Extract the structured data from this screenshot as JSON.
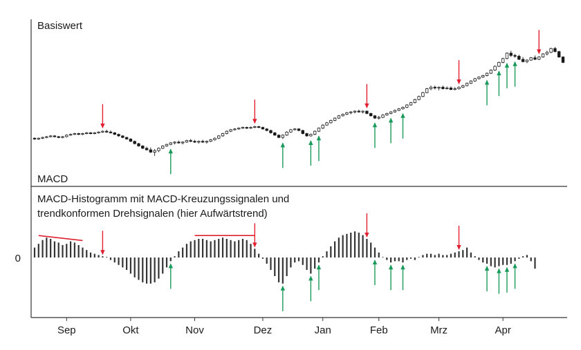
{
  "chart_data": [
    {
      "type": "candlestick",
      "title": "Basiswert",
      "ylabel": "",
      "grid": false,
      "series": [
        {
          "ohlc": [
            [
              15.8,
              15.9,
              15.6,
              15.7
            ],
            [
              15.7,
              15.9,
              15.6,
              15.8
            ],
            [
              15.8,
              16.0,
              15.7,
              15.9
            ],
            [
              15.9,
              16.1,
              15.8,
              16.0
            ],
            [
              16.0,
              16.2,
              15.9,
              16.1
            ],
            [
              16.1,
              16.2,
              15.9,
              16.0
            ],
            [
              16.0,
              16.1,
              15.8,
              15.9
            ],
            [
              15.9,
              16.1,
              15.8,
              16.0
            ],
            [
              16.0,
              16.3,
              15.9,
              16.2
            ],
            [
              16.2,
              16.4,
              16.1,
              16.3
            ],
            [
              16.3,
              16.5,
              16.2,
              16.4
            ],
            [
              16.4,
              16.5,
              16.2,
              16.3
            ],
            [
              16.3,
              16.5,
              16.2,
              16.4
            ],
            [
              16.4,
              16.6,
              16.3,
              16.5
            ],
            [
              16.5,
              16.6,
              16.3,
              16.4
            ],
            [
              16.4,
              16.6,
              16.3,
              16.5
            ],
            [
              16.5,
              16.7,
              16.4,
              16.6
            ],
            [
              16.6,
              16.8,
              16.5,
              16.7
            ],
            [
              16.7,
              16.9,
              16.5,
              16.6
            ],
            [
              16.6,
              16.8,
              16.4,
              16.5
            ],
            [
              16.5,
              16.6,
              16.2,
              16.3
            ],
            [
              16.3,
              16.4,
              16.0,
              16.1
            ],
            [
              16.1,
              16.2,
              15.8,
              15.9
            ],
            [
              15.9,
              16.0,
              15.6,
              15.7
            ],
            [
              15.7,
              15.8,
              15.3,
              15.4
            ],
            [
              15.4,
              15.5,
              15.0,
              15.1
            ],
            [
              15.1,
              15.2,
              14.7,
              14.8
            ],
            [
              14.8,
              14.9,
              14.4,
              14.5
            ],
            [
              14.5,
              14.7,
              14.2,
              14.3
            ],
            [
              14.3,
              14.6,
              13.9,
              14.0
            ],
            [
              14.0,
              14.4,
              13.5,
              14.2
            ],
            [
              14.2,
              14.6,
              14.0,
              14.5
            ],
            [
              14.5,
              14.9,
              14.4,
              14.8
            ],
            [
              14.8,
              15.1,
              14.7,
              15.0
            ],
            [
              15.0,
              15.3,
              14.9,
              15.2
            ],
            [
              15.2,
              15.4,
              15.0,
              15.3
            ],
            [
              15.3,
              15.5,
              15.1,
              15.2
            ],
            [
              15.2,
              15.4,
              15.0,
              15.3
            ],
            [
              15.3,
              15.6,
              15.2,
              15.5
            ],
            [
              15.5,
              15.7,
              15.3,
              15.4
            ],
            [
              15.4,
              15.6,
              15.2,
              15.3
            ],
            [
              15.3,
              15.5,
              15.1,
              15.4
            ],
            [
              15.4,
              15.6,
              15.2,
              15.3
            ],
            [
              15.3,
              15.5,
              15.1,
              15.4
            ],
            [
              15.4,
              15.7,
              15.3,
              15.6
            ],
            [
              15.6,
              15.9,
              15.5,
              15.8
            ],
            [
              15.8,
              16.2,
              15.7,
              16.1
            ],
            [
              16.1,
              16.5,
              16.0,
              16.4
            ],
            [
              16.4,
              16.8,
              16.3,
              16.7
            ],
            [
              16.7,
              17.0,
              16.6,
              16.9
            ],
            [
              16.9,
              17.1,
              16.8,
              17.0
            ],
            [
              17.0,
              17.2,
              16.9,
              17.1
            ],
            [
              17.1,
              17.3,
              17.0,
              17.2
            ],
            [
              17.2,
              17.3,
              17.0,
              17.1
            ],
            [
              17.1,
              17.3,
              17.0,
              17.2
            ],
            [
              17.2,
              17.4,
              17.1,
              17.3
            ],
            [
              17.3,
              17.4,
              17.1,
              17.2
            ],
            [
              17.2,
              17.3,
              16.9,
              17.0
            ],
            [
              17.0,
              17.1,
              16.7,
              16.8
            ],
            [
              16.8,
              16.9,
              16.4,
              16.5
            ],
            [
              16.5,
              16.6,
              16.1,
              16.2
            ],
            [
              16.2,
              16.3,
              15.8,
              15.9
            ],
            [
              15.9,
              16.3,
              15.7,
              16.2
            ],
            [
              16.2,
              16.7,
              16.1,
              16.6
            ],
            [
              16.6,
              17.0,
              16.5,
              16.9
            ],
            [
              16.9,
              17.1,
              16.8,
              17.0
            ],
            [
              17.0,
              17.1,
              16.7,
              16.8
            ],
            [
              16.8,
              16.9,
              16.3,
              16.4
            ],
            [
              16.4,
              16.5,
              16.0,
              16.1
            ],
            [
              16.1,
              16.4,
              16.0,
              16.3
            ],
            [
              16.3,
              16.8,
              16.2,
              16.7
            ],
            [
              16.7,
              17.2,
              16.6,
              17.1
            ],
            [
              17.1,
              17.6,
              17.0,
              17.5
            ],
            [
              17.5,
              17.9,
              17.4,
              17.8
            ],
            [
              17.8,
              18.2,
              17.7,
              18.1
            ],
            [
              18.1,
              18.5,
              18.0,
              18.4
            ],
            [
              18.4,
              18.8,
              18.3,
              18.7
            ],
            [
              18.7,
              19.0,
              18.6,
              18.9
            ],
            [
              18.9,
              19.2,
              18.8,
              19.1
            ],
            [
              19.1,
              19.3,
              18.9,
              19.2
            ],
            [
              19.2,
              19.4,
              19.0,
              19.3
            ],
            [
              19.3,
              19.5,
              19.1,
              19.2
            ],
            [
              19.2,
              19.4,
              19.0,
              19.3
            ],
            [
              19.3,
              19.4,
              18.9,
              19.0
            ],
            [
              19.0,
              19.1,
              18.6,
              18.7
            ],
            [
              18.7,
              18.8,
              18.3,
              18.4
            ],
            [
              18.4,
              18.7,
              18.2,
              18.5
            ],
            [
              18.5,
              18.9,
              18.4,
              18.8
            ],
            [
              18.8,
              19.1,
              18.7,
              19.0
            ],
            [
              19.0,
              19.3,
              18.9,
              19.2
            ],
            [
              19.2,
              19.5,
              19.1,
              19.4
            ],
            [
              19.4,
              19.7,
              19.3,
              19.6
            ],
            [
              19.6,
              19.9,
              19.5,
              19.8
            ],
            [
              19.8,
              20.2,
              19.7,
              20.1
            ],
            [
              20.1,
              20.5,
              20.0,
              20.4
            ],
            [
              20.4,
              20.9,
              20.3,
              20.8
            ],
            [
              20.8,
              21.3,
              20.7,
              21.2
            ],
            [
              21.2,
              21.8,
              21.1,
              21.7
            ],
            [
              21.7,
              22.3,
              21.6,
              22.2
            ],
            [
              22.2,
              22.6,
              22.0,
              22.4
            ],
            [
              22.4,
              22.6,
              22.1,
              22.3
            ],
            [
              22.3,
              22.5,
              22.0,
              22.4
            ],
            [
              22.4,
              22.6,
              22.1,
              22.2
            ],
            [
              22.2,
              22.5,
              22.1,
              22.3
            ],
            [
              22.3,
              22.5,
              22.0,
              22.1
            ],
            [
              22.1,
              22.4,
              22.0,
              22.2
            ],
            [
              22.2,
              22.5,
              22.1,
              22.4
            ],
            [
              22.4,
              22.7,
              22.3,
              22.6
            ],
            [
              22.6,
              23.0,
              22.5,
              22.9
            ],
            [
              22.9,
              23.3,
              22.8,
              23.2
            ],
            [
              23.2,
              23.6,
              23.1,
              23.5
            ],
            [
              23.5,
              23.8,
              23.4,
              23.7
            ],
            [
              23.7,
              24.0,
              23.6,
              23.9
            ],
            [
              23.9,
              24.3,
              23.8,
              24.2
            ],
            [
              24.2,
              24.7,
              24.1,
              24.6
            ],
            [
              24.6,
              25.2,
              24.5,
              25.1
            ],
            [
              25.1,
              25.7,
              25.0,
              25.6
            ],
            [
              25.6,
              26.2,
              25.5,
              26.1
            ],
            [
              26.1,
              26.9,
              26.0,
              26.8
            ],
            [
              26.8,
              27.1,
              26.3,
              26.5
            ],
            [
              26.5,
              26.7,
              26.2,
              26.4
            ],
            [
              26.4,
              26.6,
              25.9,
              26.0
            ],
            [
              26.0,
              26.3,
              25.6,
              25.7
            ],
            [
              25.7,
              26.0,
              25.5,
              25.9
            ],
            [
              25.9,
              26.3,
              25.8,
              26.2
            ],
            [
              26.2,
              26.5,
              25.9,
              26.0
            ],
            [
              26.0,
              26.4,
              25.9,
              26.3
            ],
            [
              26.3,
              26.8,
              26.2,
              26.7
            ],
            [
              26.7,
              27.1,
              26.5,
              26.9
            ],
            [
              26.9,
              27.5,
              26.8,
              27.4
            ],
            [
              27.4,
              27.6,
              26.9,
              27.0
            ],
            [
              27.0,
              27.1,
              26.2,
              26.3
            ],
            [
              26.3,
              26.4,
              25.5,
              25.6
            ]
          ]
        }
      ],
      "annotations": [
        {
          "kind": "sell-arrow",
          "index": 17
        },
        {
          "kind": "sell-arrow",
          "index": 55
        },
        {
          "kind": "sell-arrow",
          "index": 83
        },
        {
          "kind": "sell-arrow",
          "index": 106
        },
        {
          "kind": "sell-arrow",
          "index": 126
        },
        {
          "kind": "buy-arrow",
          "index": 34
        },
        {
          "kind": "buy-arrow",
          "index": 62
        },
        {
          "kind": "buy-arrow",
          "index": 69
        },
        {
          "kind": "buy-arrow",
          "index": 71
        },
        {
          "kind": "buy-arrow",
          "index": 85
        },
        {
          "kind": "buy-arrow",
          "index": 89
        },
        {
          "kind": "buy-arrow",
          "index": 92
        },
        {
          "kind": "buy-arrow",
          "index": 113
        },
        {
          "kind": "buy-arrow",
          "index": 116
        },
        {
          "kind": "buy-arrow",
          "index": 118
        },
        {
          "kind": "buy-arrow",
          "index": 120
        }
      ]
    },
    {
      "type": "bar",
      "title": "MACD",
      "subtitle_lines": [
        "MACD-Histogramm mit MACD-Kreuzungssignalen und",
        "trendkonformen Drehsignalen (hier Aufwärtstrend)"
      ],
      "zero_label": "0",
      "grid": false,
      "x_tick_labels": [
        "Sep",
        "Okt",
        "Nov",
        "Dez",
        "Jan",
        "Feb",
        "Mrz",
        "Apr"
      ],
      "x_tick_index": [
        8,
        24,
        40,
        57,
        72,
        86,
        101,
        117
      ],
      "ylim": [
        -35,
        25
      ],
      "values": [
        8,
        11,
        14,
        16,
        15,
        13,
        12,
        10,
        11,
        13,
        12,
        10,
        8,
        6,
        4,
        3,
        2,
        1,
        0,
        -2,
        -4,
        -6,
        -8,
        -10,
        -13,
        -16,
        -18,
        -20,
        -21,
        -21,
        -20,
        -17,
        -13,
        -8,
        -3,
        1,
        5,
        8,
        11,
        13,
        14,
        15,
        15,
        14,
        13,
        14,
        15,
        16,
        15,
        14,
        13,
        14,
        15,
        14,
        11,
        7,
        3,
        -1,
        -5,
        -10,
        -15,
        -20,
        -21,
        -15,
        -8,
        -4,
        -3,
        -6,
        -10,
        -13,
        -9,
        -4,
        1,
        5,
        9,
        13,
        16,
        18,
        19,
        20,
        21,
        20,
        18,
        15,
        12,
        8,
        4,
        0,
        -2,
        -4,
        -3,
        -3,
        -4,
        -2,
        -1,
        -2,
        0,
        2,
        3,
        3,
        2,
        3,
        2,
        2,
        3,
        4,
        5,
        6,
        8,
        4,
        1,
        -2,
        -4,
        -5,
        -7,
        -8,
        -7,
        -6,
        -6,
        -5,
        -3,
        -1,
        1,
        2,
        -3,
        -9
      ],
      "trend_lines": [
        {
          "from_index": 1,
          "from_value": 16,
          "to_index": 12,
          "to_value": 12
        },
        {
          "from_index": 40,
          "from_value": 16,
          "to_index": 55,
          "to_value": 16
        }
      ],
      "annotations": [
        {
          "kind": "sell-arrow",
          "index": 17
        },
        {
          "kind": "sell-arrow",
          "index": 55
        },
        {
          "kind": "sell-arrow",
          "index": 83
        },
        {
          "kind": "sell-arrow",
          "index": 106
        },
        {
          "kind": "sell-arrow",
          "index": 126
        },
        {
          "kind": "buy-arrow",
          "index": 34
        },
        {
          "kind": "buy-arrow",
          "index": 62
        },
        {
          "kind": "buy-arrow",
          "index": 69
        },
        {
          "kind": "buy-arrow",
          "index": 71
        },
        {
          "kind": "buy-arrow",
          "index": 85
        },
        {
          "kind": "buy-arrow",
          "index": 89
        },
        {
          "kind": "buy-arrow",
          "index": 92
        },
        {
          "kind": "buy-arrow",
          "index": 113
        },
        {
          "kind": "buy-arrow",
          "index": 116
        },
        {
          "kind": "buy-arrow",
          "index": 118
        },
        {
          "kind": "buy-arrow",
          "index": 120
        }
      ]
    }
  ],
  "colors": {
    "candle_up_fill": "#ffffff",
    "candle_down_fill": "#1a1a1a",
    "candle_outline": "#1a1a1a",
    "histogram": "#333333",
    "sell_arrow": "#e02030",
    "buy_arrow": "#1a9a5a",
    "trend_line": "#e02030",
    "axis": "#333333"
  }
}
